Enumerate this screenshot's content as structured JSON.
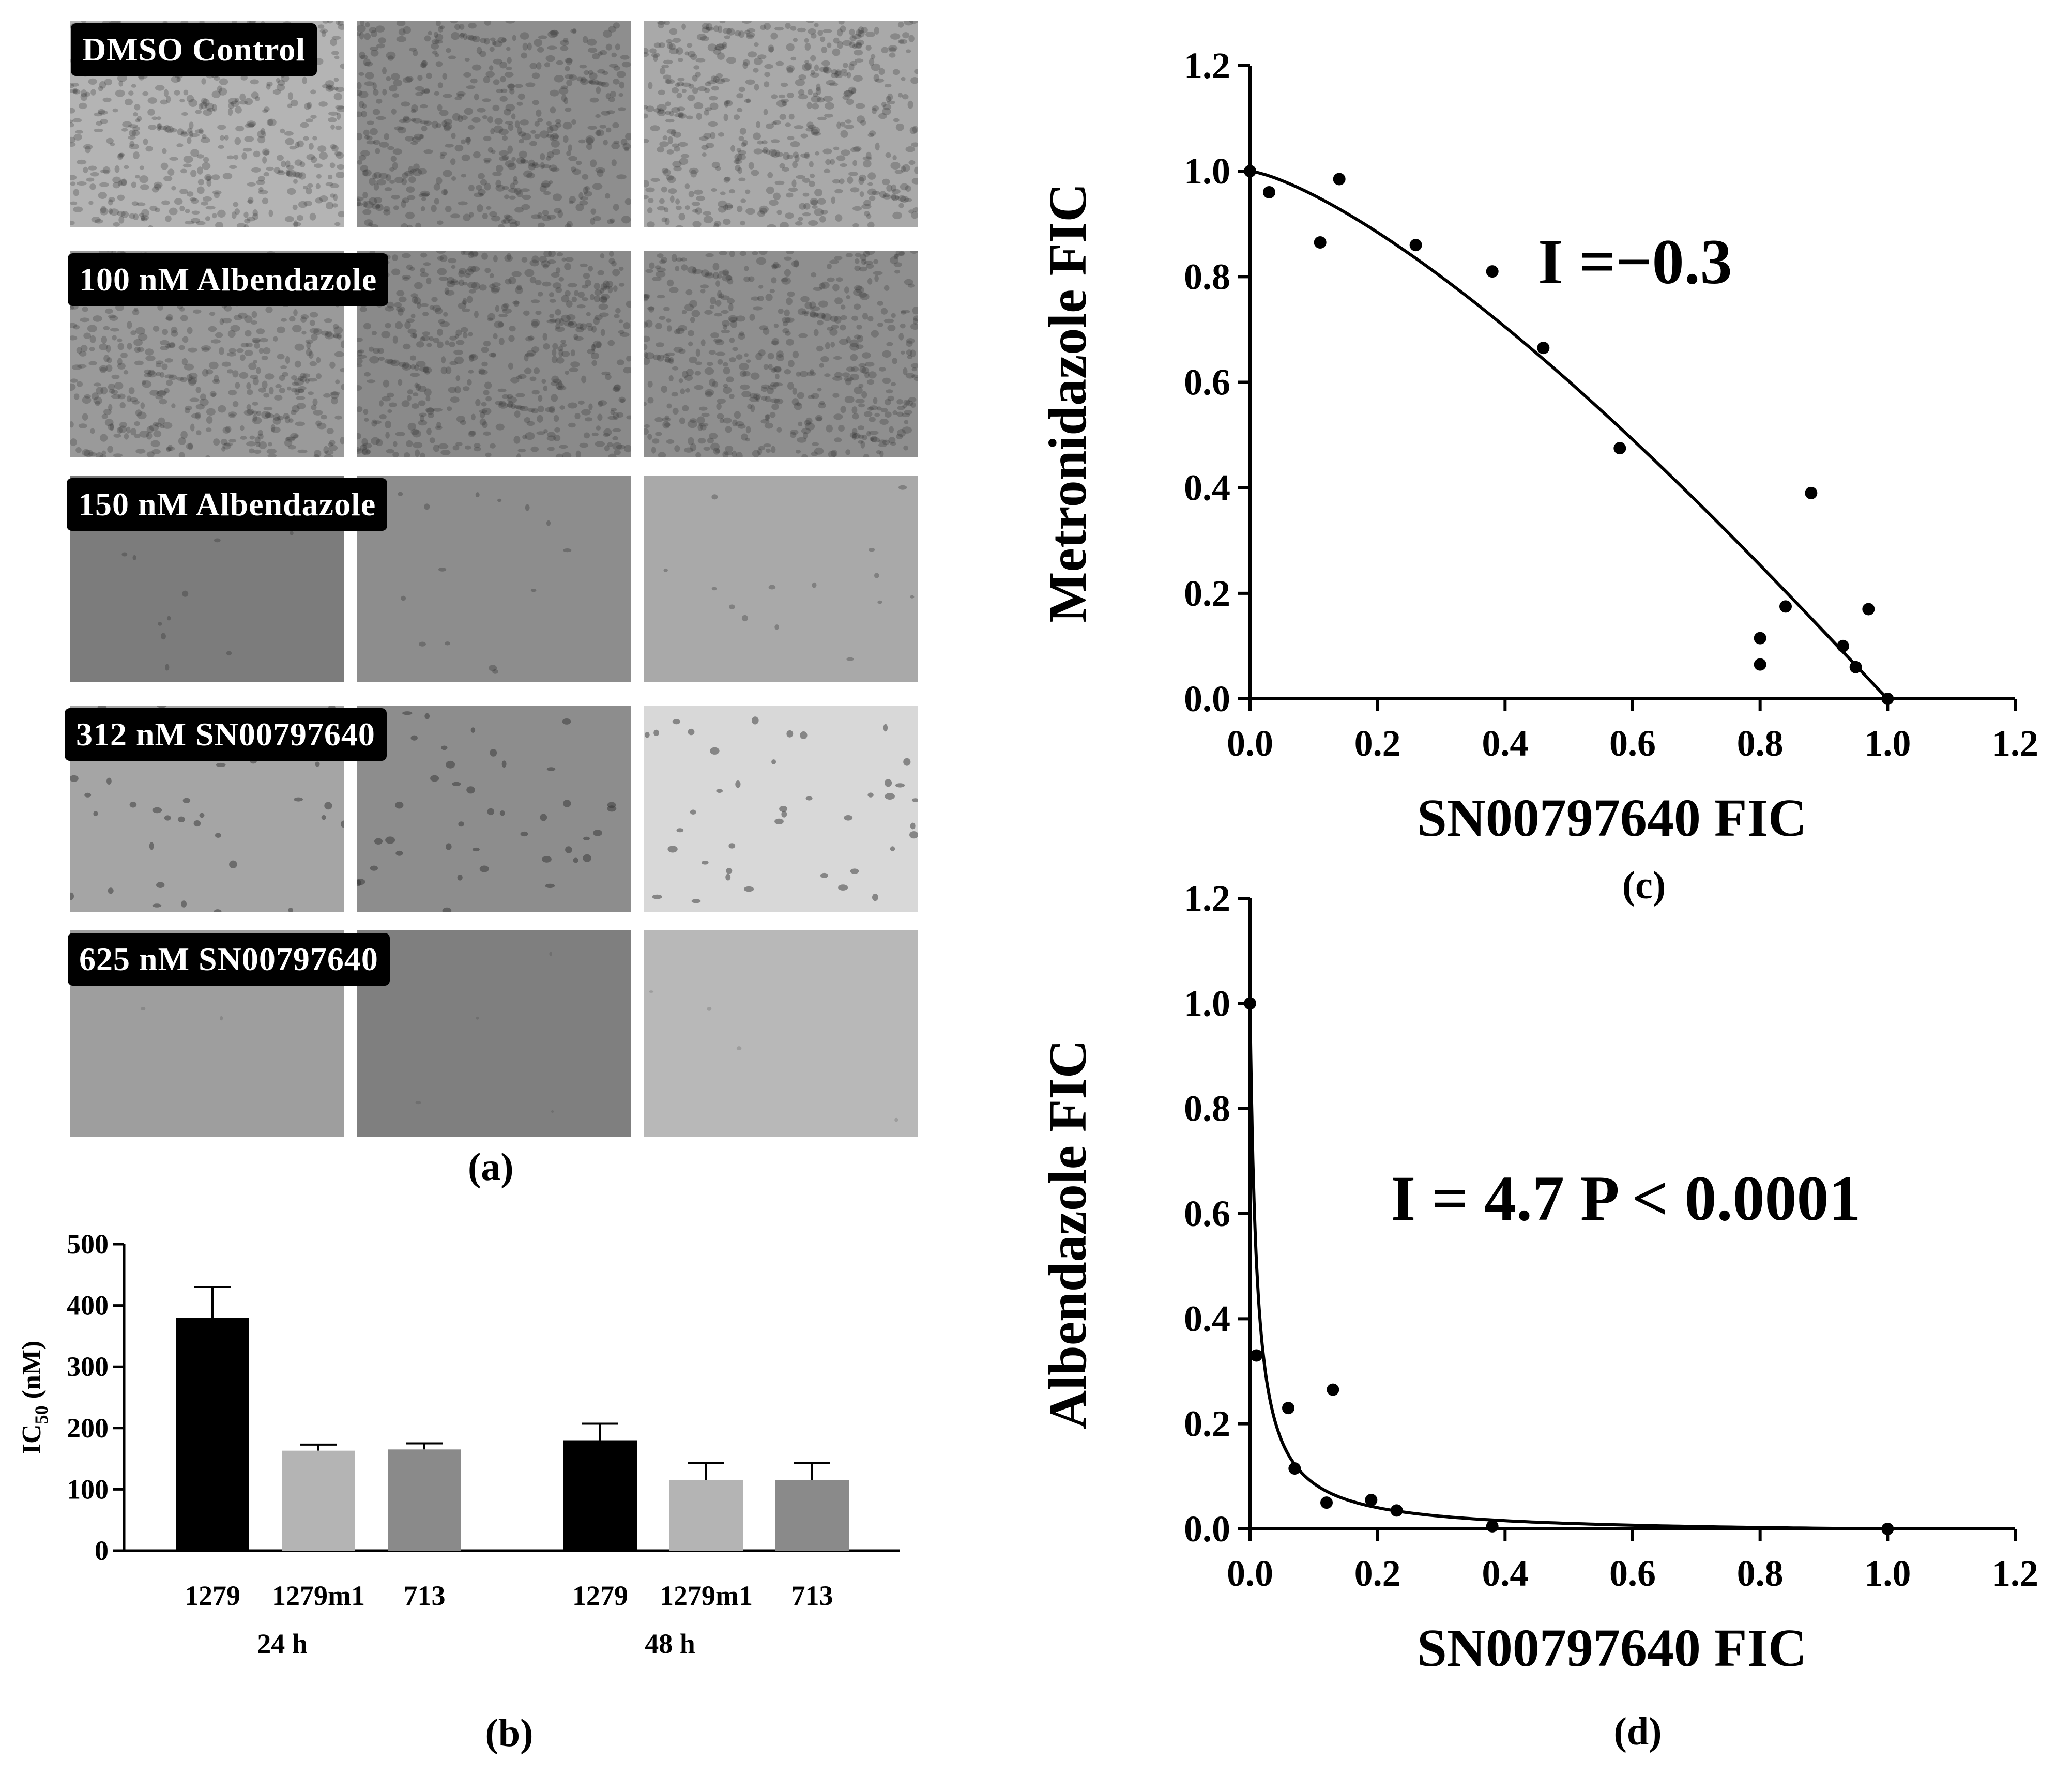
{
  "panel_a": {
    "caption": "(a)",
    "rows": [
      {
        "label": "DMSO  Control",
        "tones": [
          "#b4b4b4",
          "#8e8e8e",
          "#a9a9a9"
        ],
        "texture": "dense-cells"
      },
      {
        "label": "100 nM Albendazole",
        "tones": [
          "#9a9a9a",
          "#8a8a8a",
          "#8f8f8f"
        ],
        "texture": "dense-cells"
      },
      {
        "label": "150 nM Albendazole",
        "tones": [
          "#7c7c7c",
          "#8d8d8d",
          "#a9a9a9"
        ],
        "texture": "sparse-debris"
      },
      {
        "label": "312 nM SN00797640",
        "tones": [
          "#a5a5a5",
          "#8d8d8d",
          "#d8d8d8"
        ],
        "texture": "scattered-cells"
      },
      {
        "label": "625 nM SN00797640",
        "tones": [
          "#9e9e9e",
          "#7f7f7f",
          "#b8b8b8"
        ],
        "texture": "empty"
      }
    ]
  },
  "chart_data": [
    {
      "id": "b",
      "type": "bar",
      "caption": "(b)",
      "ylabel": "IC50 (nM)",
      "ylabel_main": "IC",
      "ylabel_sub": "50",
      "ylabel_unit": "(nM)",
      "ylim": [
        0,
        500
      ],
      "yticks": [
        0,
        100,
        200,
        300,
        400,
        500
      ],
      "groups": [
        {
          "name": "24 h",
          "bars": [
            {
              "category": "1279",
              "value": 380,
              "error": 50,
              "color": "#000000"
            },
            {
              "category": "1279m1",
              "value": 163,
              "error": 10,
              "color": "#b4b4b4"
            },
            {
              "category": "713",
              "value": 165,
              "error": 10,
              "color": "#8a8a8a"
            }
          ]
        },
        {
          "name": "48 h",
          "bars": [
            {
              "category": "1279",
              "value": 180,
              "error": 27,
              "color": "#000000"
            },
            {
              "category": "1279m1",
              "value": 115,
              "error": 28,
              "color": "#b4b4b4"
            },
            {
              "category": "713",
              "value": 115,
              "error": 28,
              "color": "#8a8a8a"
            }
          ]
        }
      ]
    },
    {
      "id": "c",
      "type": "scatter",
      "caption": "(c)",
      "xlabel": "SN00797640 FIC",
      "ylabel": "Metronidazole FIC",
      "xlim": [
        0,
        1.2
      ],
      "ylim": [
        0,
        1.2
      ],
      "xticks": [
        "0.0",
        "0.2",
        "0.4",
        "0.6",
        "0.8",
        "1.0",
        "1.2"
      ],
      "yticks": [
        "0.0",
        "0.2",
        "0.4",
        "0.6",
        "0.8",
        "1.0",
        "1.2"
      ],
      "annotation": "I =−0.3",
      "points": [
        [
          0.0,
          1.0
        ],
        [
          0.03,
          0.96
        ],
        [
          0.11,
          0.865
        ],
        [
          0.14,
          0.985
        ],
        [
          0.26,
          0.86
        ],
        [
          0.38,
          0.81
        ],
        [
          0.46,
          0.665
        ],
        [
          0.58,
          0.475
        ],
        [
          0.8,
          0.115
        ],
        [
          0.8,
          0.065
        ],
        [
          0.84,
          0.175
        ],
        [
          0.88,
          0.39
        ],
        [
          0.93,
          0.1
        ],
        [
          0.95,
          0.06
        ],
        [
          0.97,
          0.17
        ],
        [
          1.0,
          0.0
        ]
      ],
      "fit": {
        "model": "isobologram",
        "interaction_index": -0.3
      }
    },
    {
      "id": "d",
      "type": "scatter",
      "caption": "(d)",
      "xlabel": "SN00797640 FIC",
      "ylabel": "Albendazole  FIC",
      "xlim": [
        0,
        1.2
      ],
      "ylim": [
        0,
        1.2
      ],
      "xticks": [
        "0.0",
        "0.2",
        "0.4",
        "0.6",
        "0.8",
        "1.0",
        "1.2"
      ],
      "yticks": [
        "0.0",
        "0.2",
        "0.4",
        "0.6",
        "0.8",
        "1.0",
        "1.2"
      ],
      "annotation": "I = 4.7 P < 0.0001",
      "points": [
        [
          0.0,
          1.0
        ],
        [
          0.01,
          0.33
        ],
        [
          0.06,
          0.23
        ],
        [
          0.07,
          0.115
        ],
        [
          0.12,
          0.05
        ],
        [
          0.13,
          0.265
        ],
        [
          0.19,
          0.055
        ],
        [
          0.23,
          0.035
        ],
        [
          0.38,
          0.005
        ],
        [
          1.0,
          0.0
        ]
      ],
      "fit": {
        "model": "isobologram",
        "interaction_index": 4.7
      }
    }
  ]
}
